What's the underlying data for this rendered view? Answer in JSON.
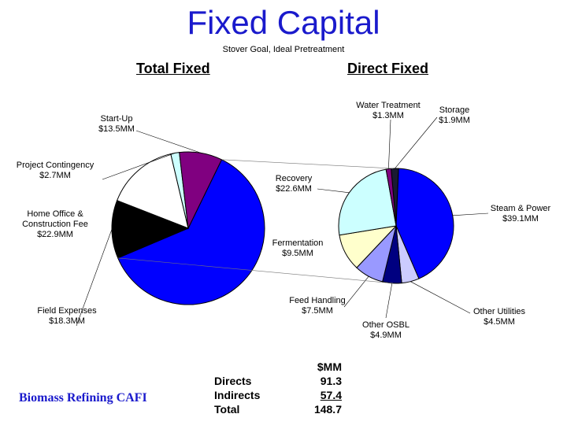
{
  "slide": {
    "title": "Fixed Capital",
    "subtitle": "Stover Goal, Ideal Pretreatment",
    "footer": "Biomass Refining CAFI"
  },
  "chart_data": [
    {
      "type": "pie",
      "title": "Total Fixed",
      "slices": [
        {
          "name": "Direct Fixed",
          "value": 91.3,
          "label": [],
          "color": "#0000ff"
        },
        {
          "name": "Field Expenses",
          "value": 18.3,
          "label": [
            "Field Expenses",
            "$18.3MM"
          ],
          "color": "#000000"
        },
        {
          "name": "Home Office & Construction Fee",
          "value": 22.9,
          "label": [
            "Home Office &",
            "Construction Fee",
            "$22.9MM"
          ],
          "color": "#ffffff"
        },
        {
          "name": "Project Contingency",
          "value": 2.7,
          "label": [
            "Project Contingency",
            "$2.7MM"
          ],
          "color": "#ccffff"
        },
        {
          "name": "Start-Up",
          "value": 13.5,
          "label": [
            "Start-Up",
            "$13.5MM"
          ],
          "color": "#800080"
        }
      ]
    },
    {
      "type": "pie",
      "title": "Direct Fixed",
      "slices": [
        {
          "name": "Storage",
          "value": 1.9,
          "label": [
            "Storage",
            "$1.9MM"
          ],
          "color": "#1a1a33"
        },
        {
          "name": "Steam & Power",
          "value": 39.1,
          "label": [
            "Steam & Power",
            "$39.1MM"
          ],
          "color": "#0000ff"
        },
        {
          "name": "Other Utilities",
          "value": 4.5,
          "label": [
            "Other Utilities",
            "$4.5MM"
          ],
          "color": "#ccccff"
        },
        {
          "name": "Other OSBL",
          "value": 4.9,
          "label": [
            "Other OSBL",
            "$4.9MM"
          ],
          "color": "#000080"
        },
        {
          "name": "Feed Handling",
          "value": 7.5,
          "label": [
            "Feed Handling",
            "$7.5MM"
          ],
          "color": "#9999ff"
        },
        {
          "name": "Fermentation",
          "value": 9.5,
          "label": [
            "Fermentation",
            "$9.5MM"
          ],
          "color": "#ffffcc"
        },
        {
          "name": "Recovery",
          "value": 22.6,
          "label": [
            "Recovery",
            "$22.6MM"
          ],
          "color": "#ccffff"
        },
        {
          "name": "Water Treatment",
          "value": 1.3,
          "label": [
            "Water Treatment",
            "$1.3MM"
          ],
          "color": "#800080"
        }
      ]
    }
  ],
  "summary": {
    "header": "$MM",
    "rows": [
      {
        "label": "Directs",
        "value": "91.3"
      },
      {
        "label": "Indirects",
        "value": "57.4"
      },
      {
        "label": "Total",
        "value": "148.7"
      }
    ]
  }
}
